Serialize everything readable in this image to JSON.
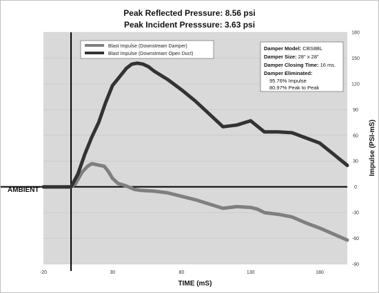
{
  "chart_data": {
    "type": "line",
    "title": "Peak Reflected Pressure: 8.56 psi",
    "subtitle": "Peak Incident Presssure: 3.63 psi",
    "xlabel": "TIME (mS)",
    "ylabel": "Impulse (PSI-mS)",
    "xlim": [
      -20,
      200
    ],
    "ylim": [
      -90,
      180
    ],
    "x_ticks": [
      "-20",
      "30",
      "80",
      "130",
      "180"
    ],
    "y_ticks": [
      "180",
      "150",
      "120",
      "90",
      "60",
      "30",
      "0",
      "-30",
      "-60",
      "-90"
    ],
    "reference_line_label": "AMBIENT",
    "reference_value": 0,
    "vertical_marker_x": 0,
    "legend_placement": "top-left",
    "series": [
      {
        "name": "Blast Impulse (Downstream Damper)",
        "color": "#7f7f7f",
        "points": [
          [
            -20,
            0
          ],
          [
            0,
            0
          ],
          [
            3,
            3
          ],
          [
            8,
            17
          ],
          [
            12,
            24
          ],
          [
            15,
            27
          ],
          [
            18,
            26
          ],
          [
            21,
            25
          ],
          [
            24,
            24
          ],
          [
            27,
            18
          ],
          [
            30,
            10
          ],
          [
            34,
            4
          ],
          [
            40,
            1
          ],
          [
            46,
            -3
          ],
          [
            50,
            -4
          ],
          [
            60,
            -5
          ],
          [
            70,
            -7
          ],
          [
            80,
            -11
          ],
          [
            90,
            -15
          ],
          [
            100,
            -20
          ],
          [
            110,
            -25
          ],
          [
            120,
            -23
          ],
          [
            130,
            -24
          ],
          [
            135,
            -26
          ],
          [
            140,
            -30
          ],
          [
            150,
            -32
          ],
          [
            160,
            -35
          ],
          [
            170,
            -42
          ],
          [
            180,
            -48
          ],
          [
            190,
            -55
          ],
          [
            200,
            -62
          ]
        ]
      },
      {
        "name": "Blast Impulse (Downstream Open Duct)",
        "color": "#333333",
        "points": [
          [
            -20,
            0
          ],
          [
            0,
            0
          ],
          [
            5,
            15
          ],
          [
            10,
            38
          ],
          [
            15,
            58
          ],
          [
            20,
            75
          ],
          [
            25,
            98
          ],
          [
            30,
            118
          ],
          [
            35,
            128
          ],
          [
            40,
            138
          ],
          [
            44,
            143
          ],
          [
            48,
            144
          ],
          [
            52,
            143
          ],
          [
            56,
            140
          ],
          [
            60,
            135
          ],
          [
            70,
            125
          ],
          [
            80,
            113
          ],
          [
            90,
            100
          ],
          [
            100,
            85
          ],
          [
            110,
            70
          ],
          [
            120,
            72
          ],
          [
            130,
            77
          ],
          [
            140,
            64
          ],
          [
            150,
            64
          ],
          [
            160,
            63
          ],
          [
            170,
            57
          ],
          [
            180,
            51
          ],
          [
            190,
            38
          ],
          [
            200,
            25
          ]
        ]
      }
    ]
  },
  "info_box": {
    "model_label": "Damper Model:",
    "model_value": "CBS8BL",
    "size_label": "Damper Size:",
    "size_value": "28\" x 28\"",
    "closing_label": "Damper Closing Time:",
    "closing_value": "16 ms.",
    "eliminated_label": "Damper Eliminated:",
    "impulse_line": "95.76% Impulse",
    "peak_line": "80.97% Peak to Peak"
  }
}
